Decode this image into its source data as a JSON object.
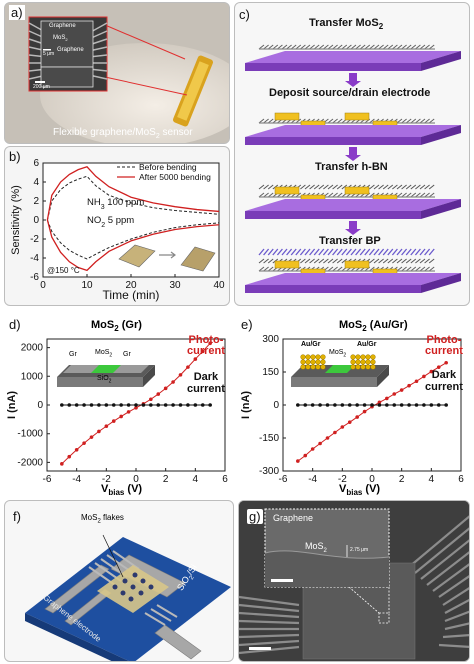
{
  "panel_a": {
    "label": "a)",
    "caption": "Flexible graphene/MoS",
    "caption_sub": "2",
    "caption_end": " sensor",
    "inset_graphene": "Graphene",
    "inset_mos2": "MoS",
    "inset_mos2_sub": "2",
    "inset_graphene2": "Graphene",
    "inset_scale1": "5 μm",
    "inset_scale2": "200 μm"
  },
  "panel_b": {
    "label": "b)",
    "legend_before": "Before bending",
    "legend_after": "After 5000 bending",
    "gas1": "NH",
    "gas1_sub": "3",
    "gas1_end": " 100 ppm",
    "gas2": "NO",
    "gas2_sub": "2",
    "gas2_end": " 5 ppm",
    "temp": "@150 °C",
    "xlabel": "Time (min)",
    "ylabel": "Sensitivity (%)",
    "xticks": [
      "0",
      "10",
      "20",
      "30",
      "40"
    ],
    "yticks": [
      "6",
      "4",
      "2",
      "0",
      "-2",
      "-4",
      "-6"
    ]
  },
  "panel_c": {
    "label": "c)",
    "step1": "Transfer MoS",
    "step1_sub": "2",
    "step2": "Deposit source/drain electrode",
    "step3": "Transfer h-BN",
    "step4": "Transfer BP"
  },
  "panel_d": {
    "label": "d)",
    "title": "MoS",
    "title_sub": "2",
    "title_end": " (Gr)",
    "photo": "Photo-",
    "photo2": "current",
    "dark": "Dark",
    "dark2": "current",
    "inset_gr1": "Gr",
    "inset_mos2": "MoS",
    "inset_mos2_sub": "2",
    "inset_gr2": "Gr",
    "inset_sio2": "SiO",
    "inset_sio2_sub": "2",
    "xlabel": "V",
    "xlabel_sub": "bias",
    "xlabel_end": " (V)",
    "ylabel": "I (nA)",
    "xticks": [
      "-6",
      "-4",
      "-2",
      "0",
      "2",
      "4",
      "6"
    ],
    "yticks": [
      "2000",
      "1000",
      "0",
      "-1000",
      "-2000"
    ]
  },
  "panel_e": {
    "label": "e)",
    "title": "MoS",
    "title_sub": "2",
    "title_end": " (Au/Gr)",
    "photo": "Photo-",
    "photo2": "current",
    "dark": "Dark",
    "dark2": "current",
    "inset_au1": "Au/Gr",
    "inset_au2": "Au/Gr",
    "inset_mos2": "MoS",
    "inset_mos2_sub": "2",
    "xlabel": "V",
    "xlabel_sub": "bias",
    "xlabel_end": " (V)",
    "ylabel": "I (nA)",
    "xticks": [
      "-6",
      "-4",
      "-2",
      "0",
      "2",
      "4",
      "6"
    ],
    "yticks": [
      "300",
      "150",
      "0",
      "-150",
      "-300"
    ]
  },
  "panel_f": {
    "label": "f)",
    "flakes": "MoS",
    "flakes_sub": "2",
    "flakes_end": " flakes",
    "electrode": "Graphene electrode",
    "substrate": "SiO",
    "substrate_sub": "2",
    "substrate_end": "/Si"
  },
  "panel_g": {
    "label": "g)",
    "graphene": "Graphene",
    "mos2": "MoS",
    "mos2_sub": "2",
    "scale": "2.75 μm"
  },
  "chart_data": [
    {
      "type": "line",
      "panel": "b",
      "xlabel": "Time (min)",
      "ylabel": "Sensitivity (%)",
      "xlim": [
        0,
        40
      ],
      "ylim": [
        -6,
        6
      ],
      "series": [
        {
          "name": "Before bending",
          "x": [
            1,
            2,
            4,
            6,
            8,
            10,
            12,
            15,
            20,
            25,
            30,
            35,
            40
          ],
          "y": [
            0,
            2.0,
            3.2,
            3.9,
            4.3,
            4.6,
            3.6,
            2.6,
            1.8,
            1.3,
            1.0,
            0.8,
            0.6
          ]
        },
        {
          "name": "After 5000 bending",
          "x": [
            1,
            2,
            4,
            6,
            8,
            10,
            12,
            15,
            20,
            25,
            30,
            35,
            40
          ],
          "y": [
            0,
            2.6,
            4.0,
            4.8,
            5.3,
            5.6,
            4.6,
            3.5,
            2.4,
            1.8,
            1.4,
            1.1,
            0.9
          ]
        },
        {
          "name": "Before bending",
          "x": [
            1,
            2,
            4,
            6,
            8,
            10,
            12,
            15,
            20,
            25,
            30,
            35,
            40
          ],
          "y": [
            0,
            -1.2,
            -2.4,
            -3.2,
            -3.7,
            -4.1,
            -3.6,
            -2.9,
            -2.0,
            -1.3,
            -0.8,
            -0.5,
            -0.3
          ]
        },
        {
          "name": "After 5000 bending",
          "x": [
            1,
            2,
            4,
            6,
            8,
            10,
            12,
            15,
            20,
            25,
            30,
            35,
            40
          ],
          "y": [
            0,
            -1.8,
            -3.4,
            -4.4,
            -5.0,
            -5.3,
            -4.4,
            -3.3,
            -2.2,
            -1.5,
            -1.0,
            -0.7,
            -0.5
          ]
        }
      ]
    },
    {
      "type": "line",
      "panel": "d",
      "title": "MoS2 (Gr)",
      "xlabel": "Vbias (V)",
      "ylabel": "I (nA)",
      "xlim": [
        -6,
        6
      ],
      "ylim": [
        -2300,
        2300
      ],
      "series": [
        {
          "name": "Photo-current",
          "x": [
            -5,
            -4.5,
            -4,
            -3.5,
            -3,
            -2.5,
            -2,
            -1.5,
            -1,
            -0.5,
            0,
            0.5,
            1,
            1.5,
            2,
            2.5,
            3,
            3.5,
            4,
            4.5,
            5
          ],
          "y": [
            -2050,
            -1800,
            -1560,
            -1330,
            -1120,
            -920,
            -740,
            -560,
            -400,
            -240,
            -100,
            40,
            200,
            380,
            580,
            800,
            1050,
            1320,
            1600,
            1870,
            2150
          ]
        },
        {
          "name": "Dark current",
          "x": [
            -5,
            -4.5,
            -4,
            -3.5,
            -3,
            -2.5,
            -2,
            -1.5,
            -1,
            -0.5,
            0,
            0.5,
            1,
            1.5,
            2,
            2.5,
            3,
            3.5,
            4,
            4.5,
            5
          ],
          "y": [
            0,
            0,
            0,
            0,
            0,
            0,
            0,
            0,
            0,
            0,
            0,
            0,
            0,
            0,
            0,
            0,
            0,
            0,
            0,
            0,
            0
          ]
        }
      ]
    },
    {
      "type": "line",
      "panel": "e",
      "title": "MoS2 (Au/Gr)",
      "xlabel": "Vbias (V)",
      "ylabel": "I (nA)",
      "xlim": [
        -6,
        6
      ],
      "ylim": [
        -300,
        300
      ],
      "series": [
        {
          "name": "Photo-current",
          "x": [
            -5,
            -4.5,
            -4,
            -3.5,
            -3,
            -2.5,
            -2,
            -1.5,
            -1,
            -0.5,
            0,
            0.5,
            1,
            1.5,
            2,
            2.5,
            3,
            3.5,
            4,
            4.5,
            5
          ],
          "y": [
            -255,
            -230,
            -200,
            -175,
            -150,
            -125,
            -100,
            -78,
            -55,
            -30,
            -8,
            12,
            30,
            50,
            68,
            88,
            108,
            130,
            152,
            172,
            192
          ]
        },
        {
          "name": "Dark current",
          "x": [
            -5,
            -4.5,
            -4,
            -3.5,
            -3,
            -2.5,
            -2,
            -1.5,
            -1,
            -0.5,
            0,
            0.5,
            1,
            1.5,
            2,
            2.5,
            3,
            3.5,
            4,
            4.5,
            5
          ],
          "y": [
            0,
            0,
            0,
            0,
            0,
            0,
            0,
            0,
            0,
            0,
            0,
            0,
            0,
            0,
            0,
            0,
            0,
            0,
            0,
            0,
            0
          ]
        }
      ]
    }
  ],
  "colors": {
    "red": "#d02020",
    "purple_layer": "#8a4cc8",
    "gold": "#e6b800",
    "substrate_blue": "#1e4fa0",
    "electrode_gray": "#9a9a9a"
  }
}
